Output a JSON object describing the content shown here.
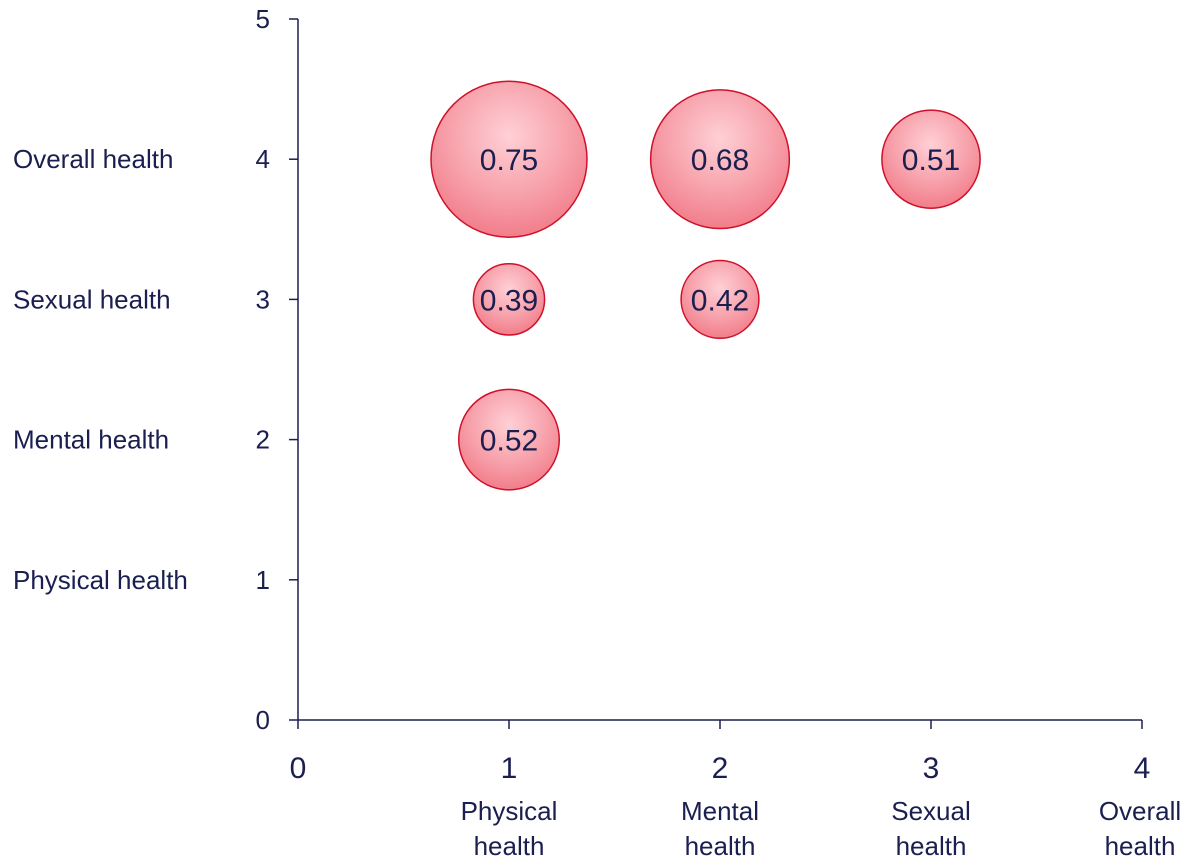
{
  "chart_data": {
    "type": "bubble",
    "xlim": [
      0,
      4
    ],
    "ylim": [
      0,
      5
    ],
    "x_ticks": [
      0,
      1,
      2,
      3,
      4
    ],
    "y_ticks": [
      0,
      1,
      2,
      3,
      4,
      5
    ],
    "x_category_labels": [
      {
        "x": 1,
        "lines": [
          "Physical",
          "health"
        ]
      },
      {
        "x": 2,
        "lines": [
          "Mental",
          "health"
        ]
      },
      {
        "x": 3,
        "lines": [
          "Sexual",
          "health"
        ]
      },
      {
        "x": 4,
        "lines": [
          "Overall",
          "health"
        ]
      }
    ],
    "y_category_labels": [
      {
        "y": 4,
        "label": "Overall health"
      },
      {
        "y": 3,
        "label": "Sexual health"
      },
      {
        "y": 2,
        "label": "Mental health"
      },
      {
        "y": 1,
        "label": "Physical health"
      }
    ],
    "points": [
      {
        "x": 1,
        "y": 4,
        "value": 0.75,
        "label": "0.75"
      },
      {
        "x": 2,
        "y": 4,
        "value": 0.68,
        "label": "0.68"
      },
      {
        "x": 3,
        "y": 4,
        "value": 0.51,
        "label": "0.51"
      },
      {
        "x": 1,
        "y": 3,
        "value": 0.39,
        "label": "0.39"
      },
      {
        "x": 2,
        "y": 3,
        "value": 0.42,
        "label": "0.42"
      },
      {
        "x": 1,
        "y": 2,
        "value": 0.52,
        "label": "0.52"
      }
    ],
    "grid": false,
    "colors": {
      "bubble_fill": "#f4828f",
      "bubble_edge": "#d0102a",
      "axis": "#1a1f4f",
      "text": "#1a1f4f"
    }
  }
}
